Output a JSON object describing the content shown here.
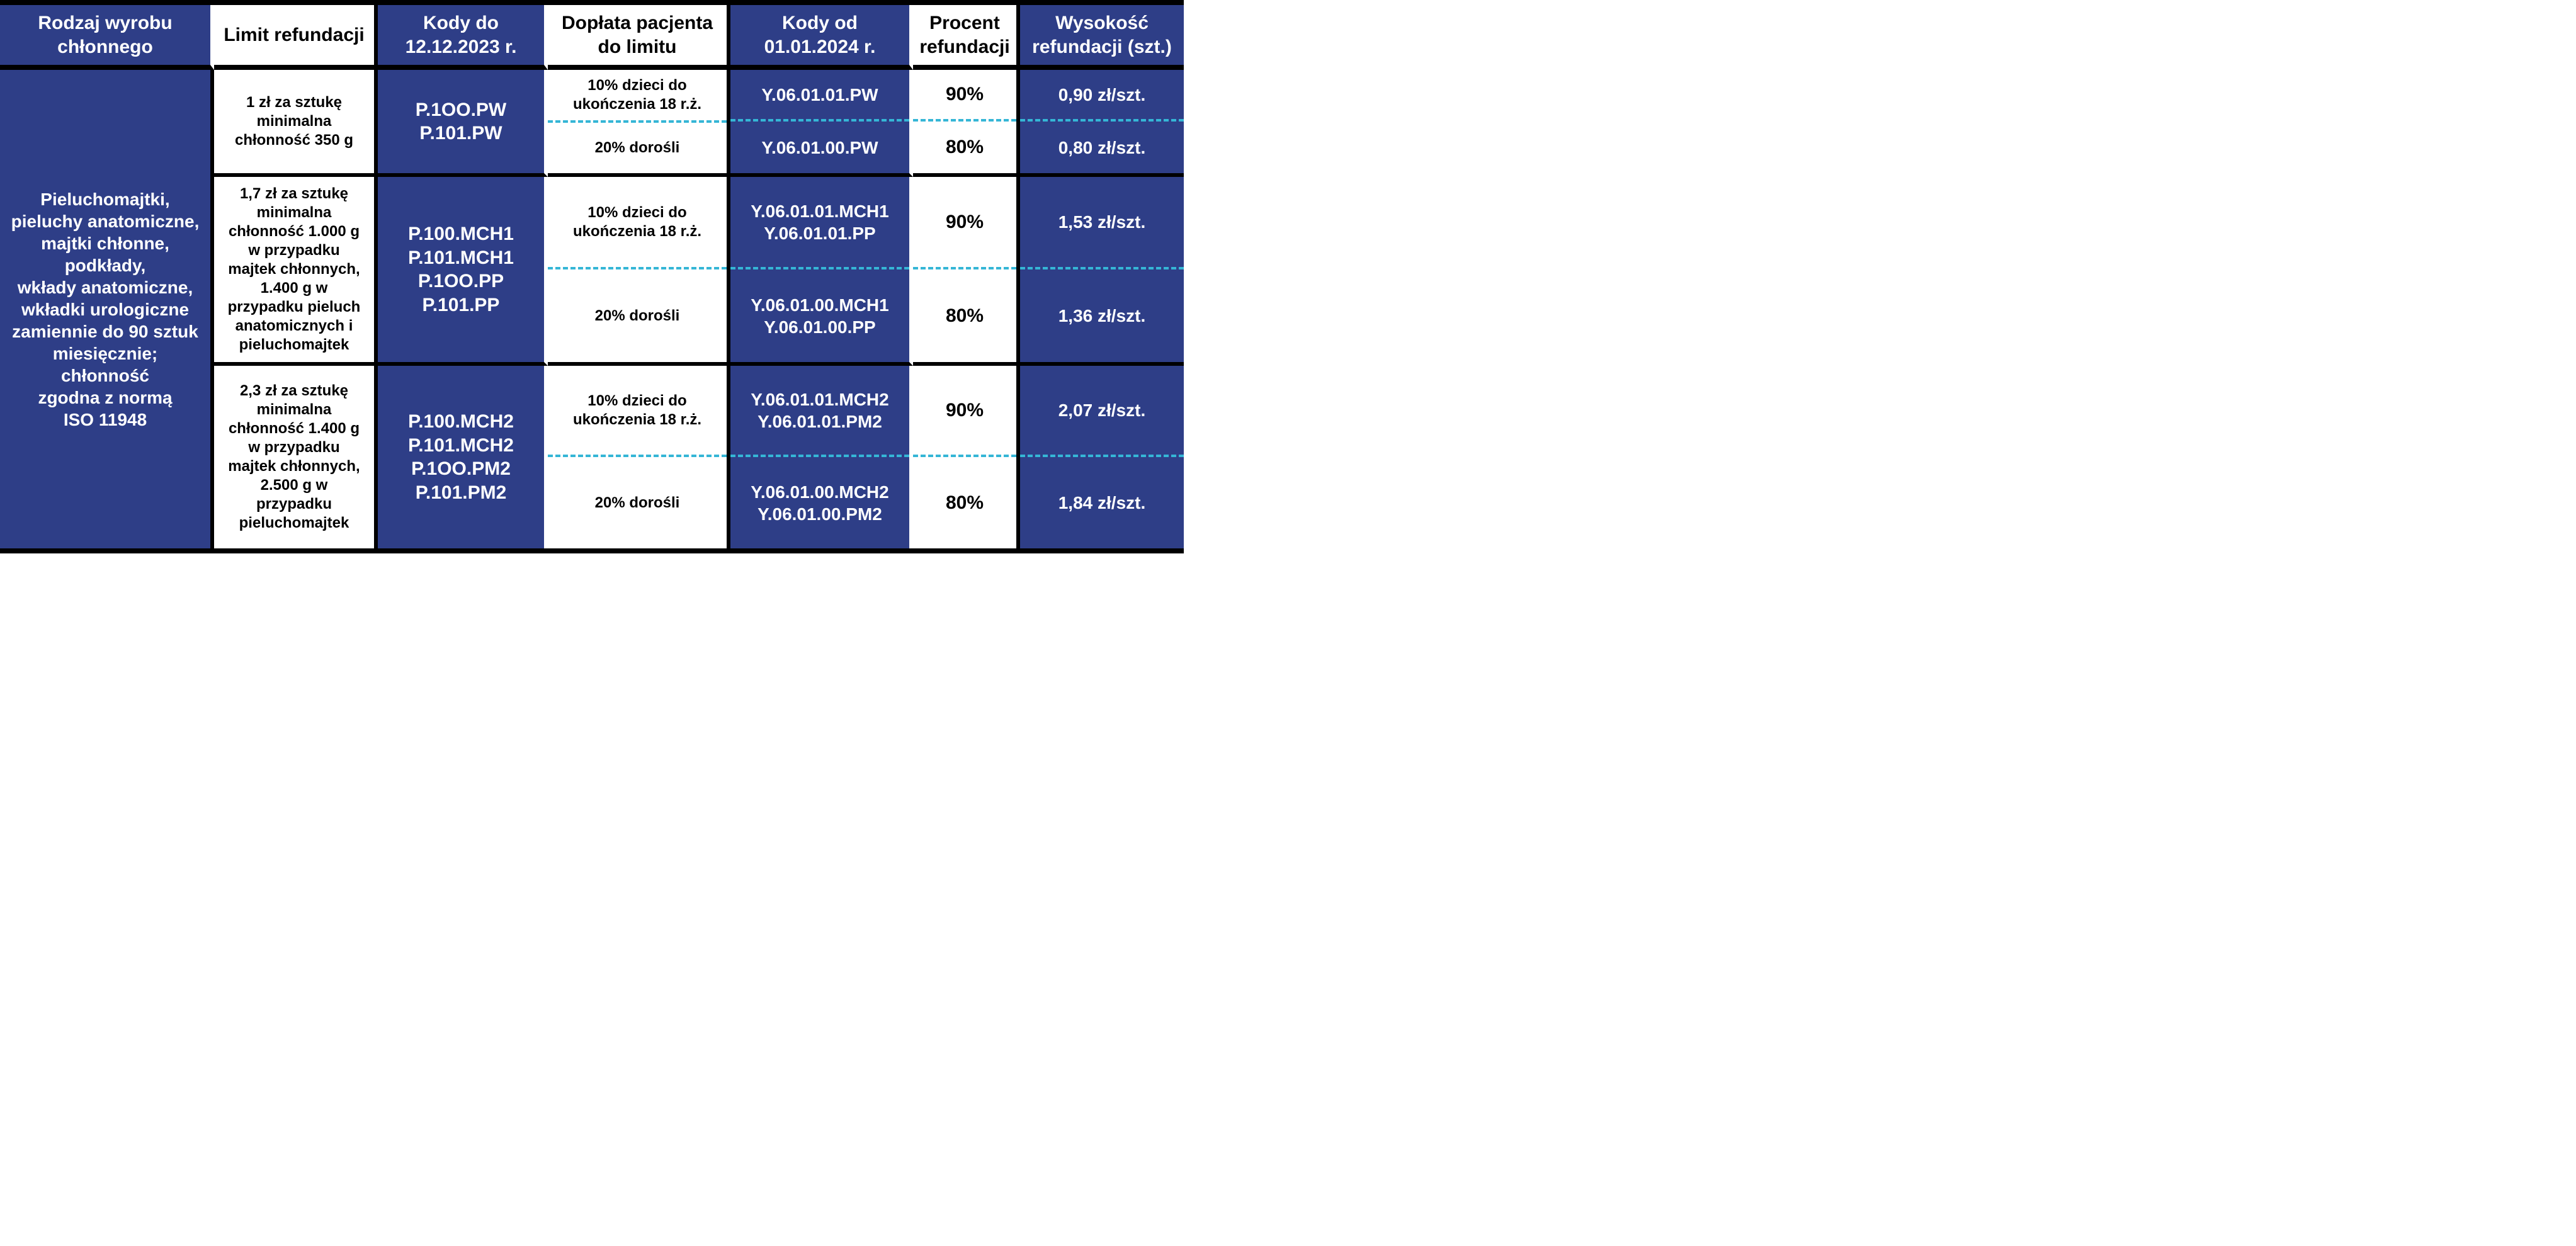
{
  "headers": {
    "c1": "Rodzaj wyrobu chłonnego",
    "c2": "Limit refundacji",
    "c3": "Kody do 12.12.2023 r.",
    "c4": "Dopłata pacjenta do limitu",
    "c5": "Kody od 01.01.2024 r.",
    "c6": "Procent refundacji",
    "c7": "Wysokość refundacji (szt.)"
  },
  "rowlabel": "Pieluchomajtki,\npieluchy anatomiczne,\nmajtki chłonne,\npodkłady,\nwkłady anatomiczne,\nwkładki urologiczne\nzamiennie do 90 sztuk\nmiesięcznie; chłonność\nzgodna z normą\nISO 11948",
  "rows": [
    {
      "limit": "1 zł za sztukę minimalna chłonność 350 g",
      "codes_old": "P.1OO.PW\nP.101.PW",
      "top": {
        "doplata": "10% dzieci do ukończenia 18 r.ż.",
        "codes_new": "Y.06.01.01.PW",
        "percent": "90%",
        "refund": "0,90 zł/szt."
      },
      "bottom": {
        "doplata": "20% dorośli",
        "codes_new": "Y.06.01.00.PW",
        "percent": "80%",
        "refund": "0,80 zł/szt."
      }
    },
    {
      "limit": "1,7 zł za sztukę minimalna chłonność 1.000 g w przypadku majtek chłonnych, 1.400 g w przypadku pieluch anatomicznych i pieluchomajtek",
      "codes_old": "P.100.MCH1\nP.101.MCH1\nP.1OO.PP\nP.101.PP",
      "top": {
        "doplata": "10% dzieci do ukończenia 18 r.ż.",
        "codes_new": "Y.06.01.01.MCH1\nY.06.01.01.PP",
        "percent": "90%",
        "refund": "1,53 zł/szt."
      },
      "bottom": {
        "doplata": "20% dorośli",
        "codes_new": "Y.06.01.00.MCH1\nY.06.01.00.PP",
        "percent": "80%",
        "refund": "1,36 zł/szt."
      }
    },
    {
      "limit": "2,3 zł za sztukę minimalna chłonność 1.400 g w przypadku majtek chłonnych, 2.500 g w przypadku pieluchomajtek",
      "codes_old": "P.100.MCH2\nP.101.MCH2\nP.1OO.PM2\nP.101.PM2",
      "top": {
        "doplata": "10% dzieci do ukończenia 18 r.ż.",
        "codes_new": "Y.06.01.01.MCH2\nY.06.01.01.PM2",
        "percent": "90%",
        "refund": "2,07 zł/szt."
      },
      "bottom": {
        "doplata": "20% dorośli",
        "codes_new": "Y.06.01.00.MCH2\nY.06.01.00.PM2",
        "percent": "80%",
        "refund": "1,84 zł/szt."
      }
    }
  ]
}
